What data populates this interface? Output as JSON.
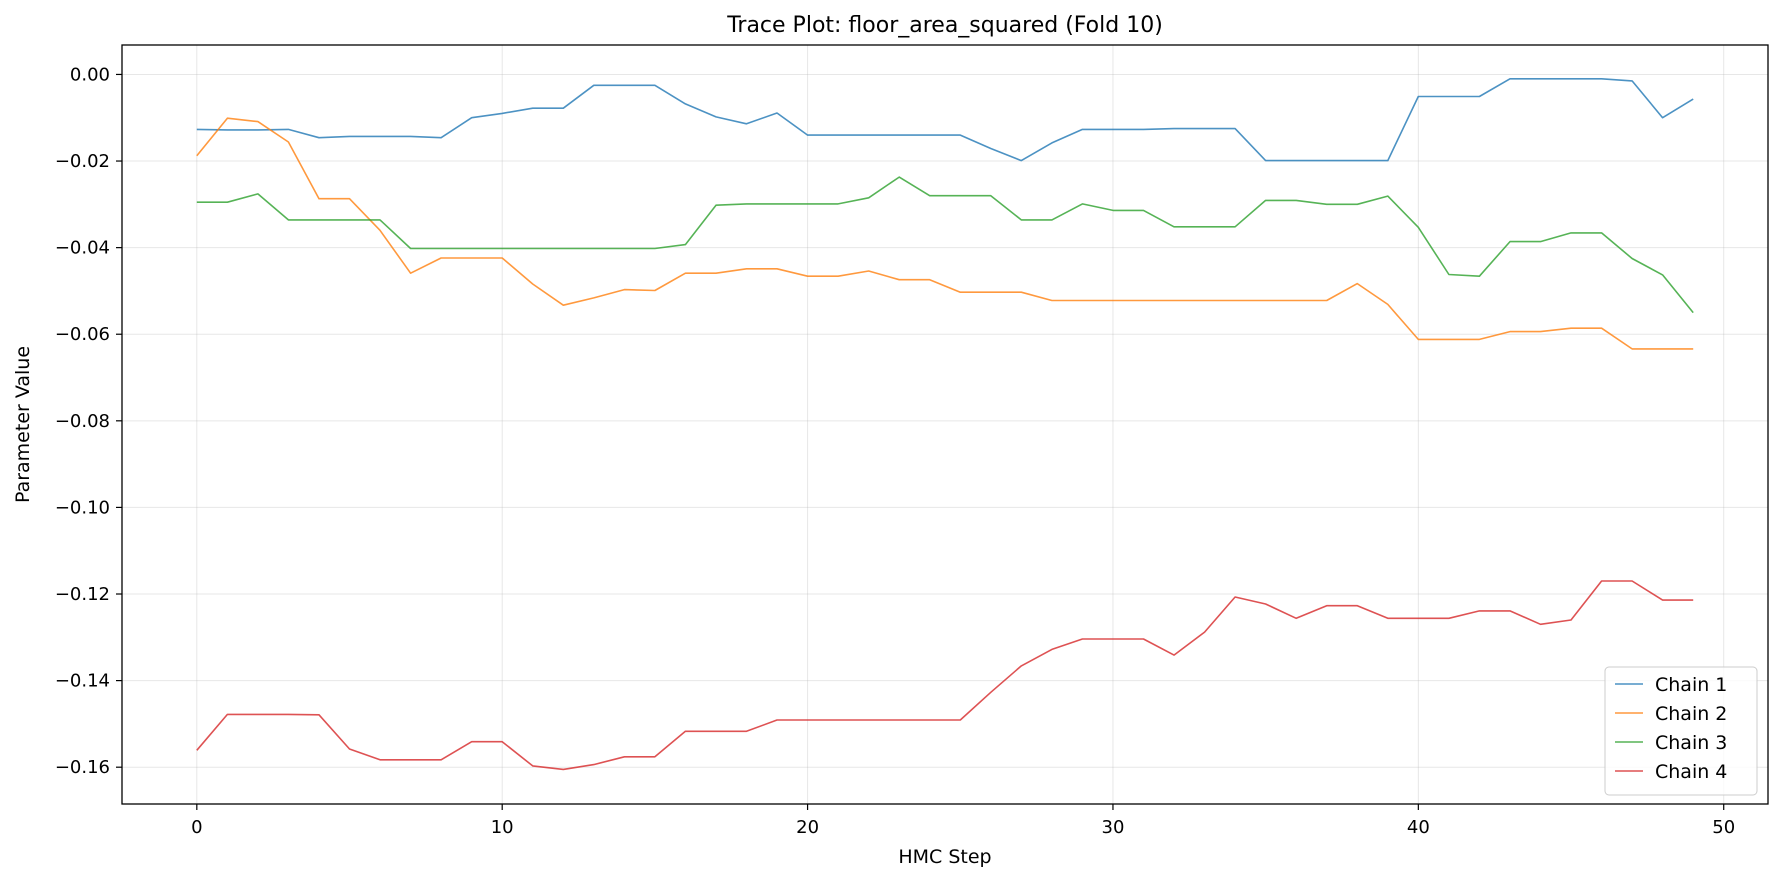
{
  "chart_data": {
    "type": "line",
    "title": "Trace Plot: floor_area_squared (Fold 10)",
    "xlabel": "HMC Step",
    "ylabel": "Parameter Value",
    "xlim": [
      -2.45,
      51.45
    ],
    "ylim": [
      -0.1685,
      0.0068
    ],
    "xticks": [
      0,
      10,
      20,
      30,
      40,
      50
    ],
    "yticks": [
      0.0,
      -0.02,
      -0.04,
      -0.06,
      -0.08,
      -0.1,
      -0.12,
      -0.14,
      -0.16
    ],
    "xtick_labels": [
      "0",
      "10",
      "20",
      "30",
      "40",
      "50"
    ],
    "ytick_labels": [
      "0.00",
      "−0.02",
      "−0.04",
      "−0.06",
      "−0.08",
      "−0.10",
      "−0.12",
      "−0.14",
      "−0.16"
    ],
    "grid": true,
    "legend_position": "bottom-right",
    "x": [
      0,
      1,
      2,
      3,
      4,
      5,
      6,
      7,
      8,
      9,
      10,
      11,
      12,
      13,
      14,
      15,
      16,
      17,
      18,
      19,
      20,
      21,
      22,
      23,
      24,
      25,
      26,
      27,
      28,
      29,
      30,
      31,
      32,
      33,
      34,
      35,
      36,
      37,
      38,
      39,
      40,
      41,
      42,
      43,
      44,
      45,
      46,
      47,
      48,
      49
    ],
    "series": [
      {
        "name": "Chain 1",
        "color": "#1f77b4",
        "values": [
          -0.0127,
          -0.0128,
          -0.0128,
          -0.0127,
          -0.0146,
          -0.0143,
          -0.0143,
          -0.0143,
          -0.0146,
          -0.01,
          -0.009,
          -0.0078,
          -0.0078,
          -0.0025,
          -0.0025,
          -0.0025,
          -0.0068,
          -0.0098,
          -0.0114,
          -0.0089,
          -0.014,
          -0.014,
          -0.014,
          -0.014,
          -0.014,
          -0.014,
          -0.0171,
          -0.0199,
          -0.0158,
          -0.0127,
          -0.0127,
          -0.0127,
          -0.0125,
          -0.0125,
          -0.0125,
          -0.0199,
          -0.0199,
          -0.0199,
          -0.0199,
          -0.0199,
          -0.0051,
          -0.0051,
          -0.0051,
          -0.001,
          -0.001,
          -0.001,
          -0.001,
          -0.0015,
          -0.01,
          -0.0057
        ]
      },
      {
        "name": "Chain 2",
        "color": "#ff7f0e",
        "values": [
          -0.0188,
          -0.0101,
          -0.0109,
          -0.0156,
          -0.0287,
          -0.0287,
          -0.036,
          -0.0459,
          -0.0424,
          -0.0424,
          -0.0424,
          -0.0484,
          -0.0533,
          -0.0516,
          -0.0497,
          -0.0499,
          -0.0459,
          -0.0459,
          -0.0449,
          -0.0449,
          -0.0466,
          -0.0466,
          -0.0454,
          -0.0474,
          -0.0474,
          -0.0503,
          -0.0503,
          -0.0503,
          -0.0522,
          -0.0522,
          -0.0522,
          -0.0522,
          -0.0522,
          -0.0522,
          -0.0522,
          -0.0522,
          -0.0522,
          -0.0522,
          -0.0483,
          -0.0531,
          -0.0612,
          -0.0612,
          -0.0612,
          -0.0594,
          -0.0594,
          -0.0586,
          -0.0586,
          -0.0634,
          -0.0634,
          -0.0634
        ]
      },
      {
        "name": "Chain 3",
        "color": "#2ca02c",
        "values": [
          -0.0295,
          -0.0295,
          -0.0276,
          -0.0336,
          -0.0336,
          -0.0336,
          -0.0336,
          -0.0402,
          -0.0402,
          -0.0402,
          -0.0402,
          -0.0402,
          -0.0402,
          -0.0402,
          -0.0402,
          -0.0402,
          -0.0393,
          -0.0302,
          -0.0299,
          -0.0299,
          -0.0299,
          -0.0299,
          -0.0285,
          -0.0237,
          -0.028,
          -0.028,
          -0.028,
          -0.0336,
          -0.0336,
          -0.0299,
          -0.0314,
          -0.0314,
          -0.0352,
          -0.0352,
          -0.0352,
          -0.0291,
          -0.0291,
          -0.03,
          -0.03,
          -0.0281,
          -0.0353,
          -0.0462,
          -0.0466,
          -0.0386,
          -0.0386,
          -0.0366,
          -0.0366,
          -0.0425,
          -0.0463,
          -0.055
        ]
      },
      {
        "name": "Chain 4",
        "color": "#d62728",
        "values": [
          -0.1561,
          -0.1478,
          -0.1478,
          -0.1478,
          -0.1479,
          -0.1558,
          -0.1583,
          -0.1583,
          -0.1583,
          -0.1541,
          -0.1541,
          -0.1597,
          -0.1605,
          -0.1594,
          -0.1576,
          -0.1576,
          -0.1517,
          -0.1517,
          -0.1517,
          -0.1491,
          -0.1491,
          -0.1491,
          -0.1491,
          -0.1491,
          -0.1491,
          -0.1491,
          -0.1427,
          -0.1366,
          -0.1328,
          -0.1304,
          -0.1304,
          -0.1304,
          -0.1341,
          -0.1288,
          -0.1207,
          -0.1223,
          -0.1256,
          -0.1227,
          -0.1227,
          -0.1256,
          -0.1256,
          -0.1256,
          -0.1239,
          -0.1239,
          -0.127,
          -0.126,
          -0.117,
          -0.117,
          -0.1214,
          -0.1214
        ]
      }
    ]
  }
}
